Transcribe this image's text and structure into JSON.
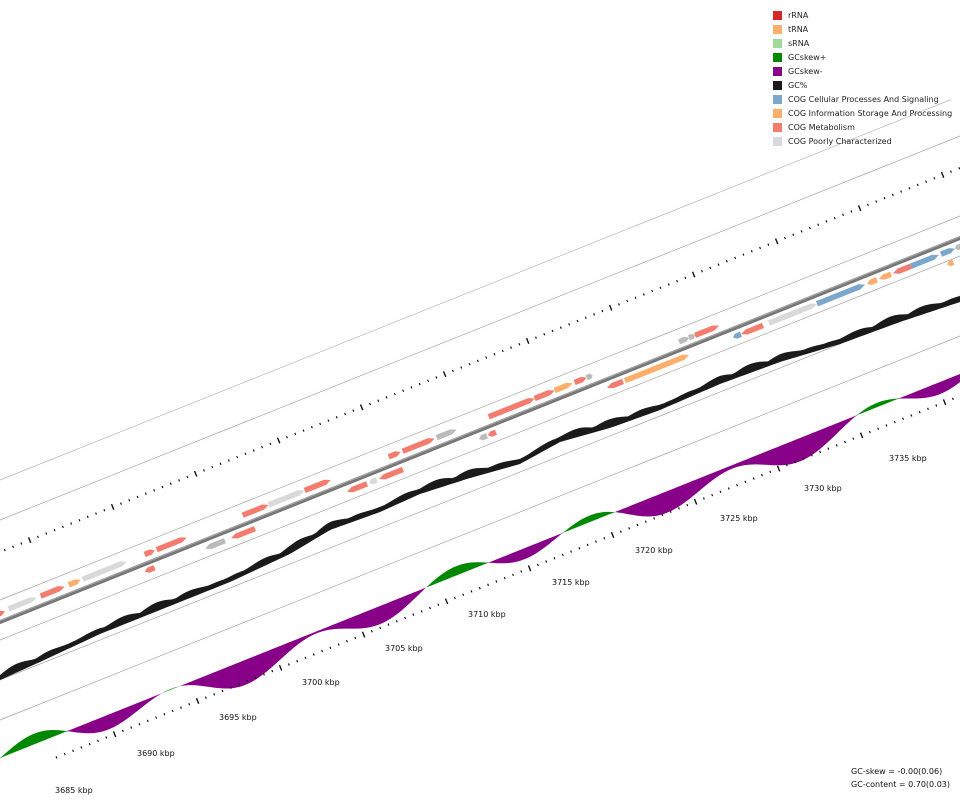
{
  "legend": {
    "items": [
      {
        "label": "rRNA",
        "color": "#d62728"
      },
      {
        "label": "tRNA",
        "color": "#fdae6b"
      },
      {
        "label": "sRNA",
        "color": "#a1d99b"
      },
      {
        "label": "GCskew+",
        "color": "#008800"
      },
      {
        "label": "GCskew-",
        "color": "#880088"
      },
      {
        "label": "GC%",
        "color": "#1a1a1a"
      },
      {
        "label": "COG Cellular Processes And Signaling",
        "color": "#7ba7cc"
      },
      {
        "label": "COG Information Storage And Processing",
        "color": "#fdae6b"
      },
      {
        "label": "COG Metabolism",
        "color": "#f47c6e"
      },
      {
        "label": "COG Poorly Characterized",
        "color": "#d9d9d9"
      }
    ]
  },
  "scale": {
    "unit": "kbp",
    "labels": [
      "3685 kbp",
      "3690 kbp",
      "3695 kbp",
      "3700 kbp",
      "3705 kbp",
      "3710 kbp",
      "3715 kbp",
      "3720 kbp",
      "3725 kbp",
      "3730 kbp",
      "3735 kbp"
    ]
  },
  "stats": {
    "gc_skew": "GC-skew = -0.00(0.06)",
    "gc_content": "GC-content = 0.70(0.03)"
  }
}
